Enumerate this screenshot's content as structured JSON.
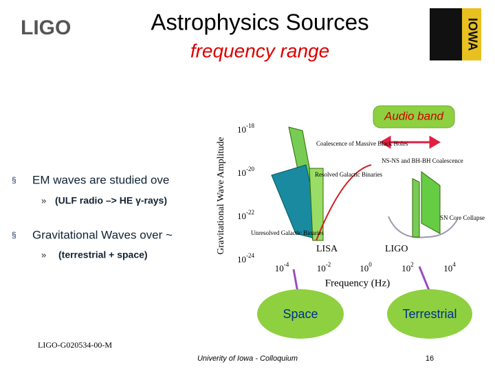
{
  "header": {
    "logo": "LIGO",
    "title": "Astrophysics Sources",
    "subtitle": "frequency range",
    "partner_logo": "IOWA"
  },
  "callouts": {
    "audio": "Audio band",
    "space": "Space",
    "terrestrial": "Terrestrial"
  },
  "bullets": [
    {
      "text": "EM  waves are studied ove",
      "sub": "(ULF radio –> HE γ-rays)"
    },
    {
      "text": "Gravitational Waves over ~",
      "sub": "(terrestrial + space)"
    }
  ],
  "figure": {
    "y_label": "Gravitational Wave Amplitude",
    "x_label": "Frequency (Hz)",
    "y_ticks": [
      {
        "base": "10",
        "exp": "-18"
      },
      {
        "base": "10",
        "exp": "-20"
      },
      {
        "base": "10",
        "exp": "-22"
      },
      {
        "base": "10",
        "exp": "-24"
      }
    ],
    "x_ticks": [
      {
        "base": "10",
        "exp": "-4"
      },
      {
        "base": "10",
        "exp": "-2"
      },
      {
        "base": "10",
        "exp": "0"
      },
      {
        "base": "10",
        "exp": "2"
      },
      {
        "base": "10",
        "exp": "4"
      }
    ],
    "labels": {
      "massive": "Coalescence of Massive Black Holes",
      "resolved": "Resolved Galactic Binaries",
      "unresolved": "Unresolved Galactic Binaries",
      "lisa": "LISA",
      "ligo": "LIGO",
      "nsns": "NS-NS and BH-BH Coalescence",
      "sn": "SN Core Collapse"
    }
  },
  "footer": {
    "doc_id": "LIGO-G020534-00-M",
    "venue": "Univerity of Iowa - Colloquium",
    "page": "16"
  }
}
